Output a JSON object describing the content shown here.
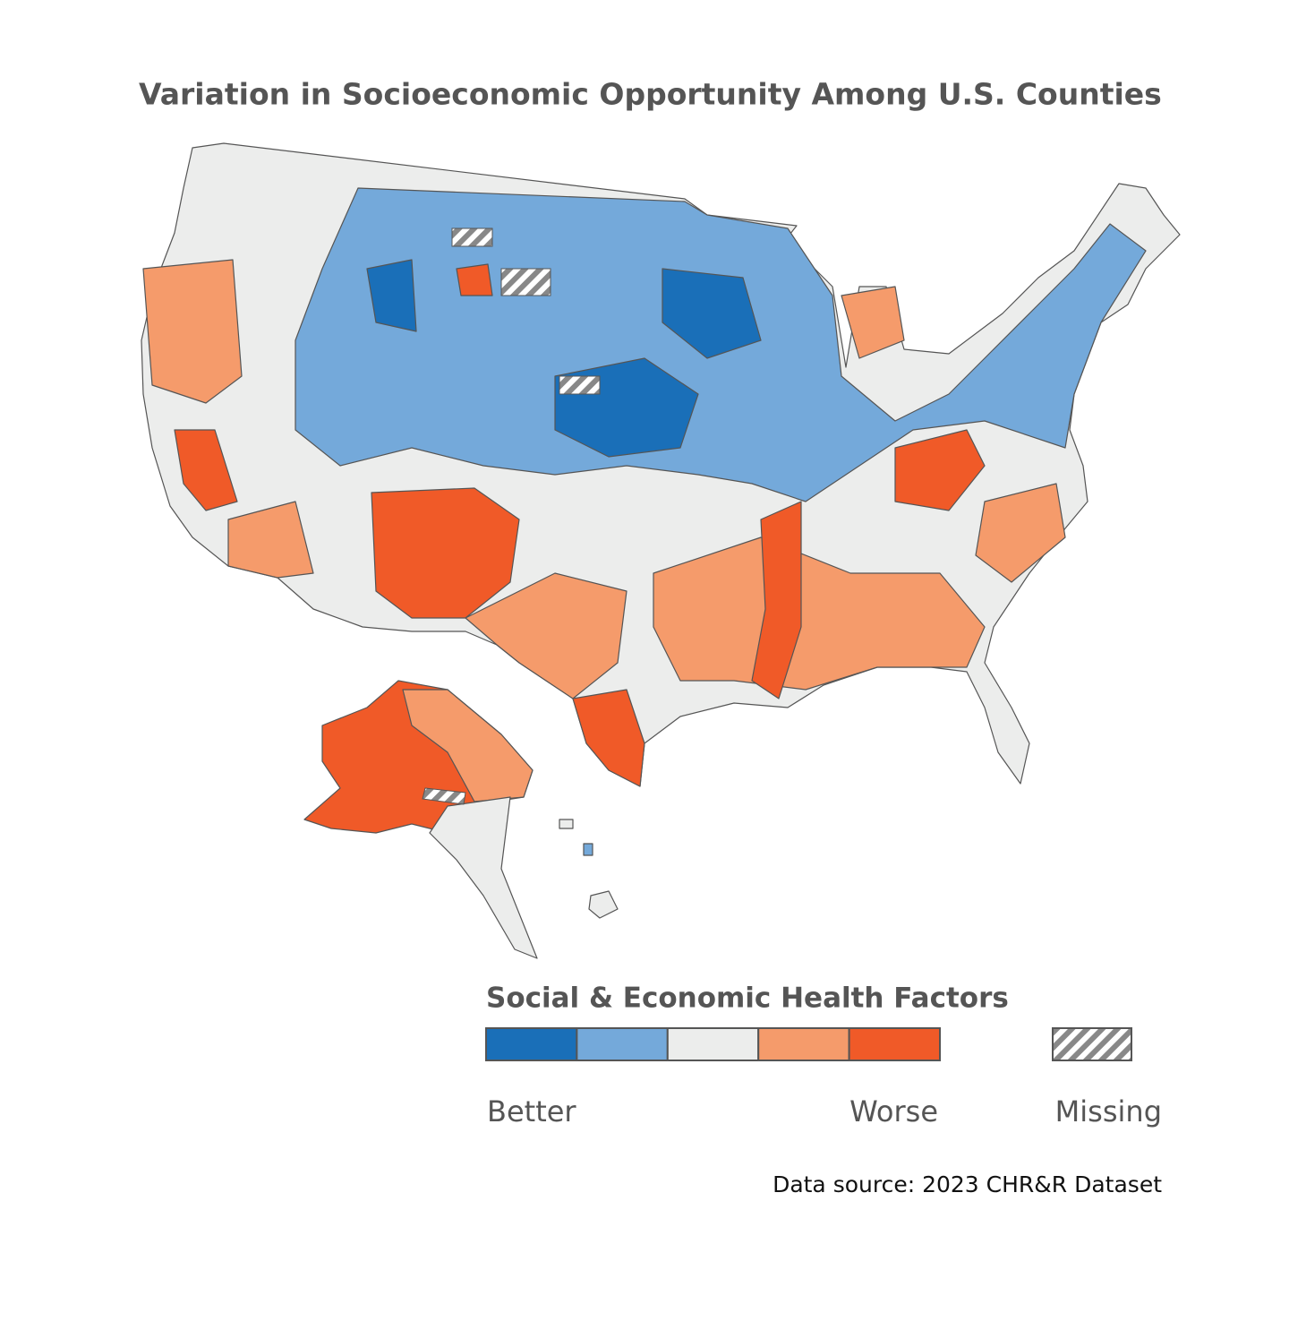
{
  "title": "Variation in Socioeconomic Opportunity Among U.S. Counties",
  "legend": {
    "title": "Social & Economic Health Factors",
    "colors": [
      "#1a6fb8",
      "#74a9da",
      "#ecedec",
      "#f59b6b",
      "#f05a28"
    ],
    "low_label": "Better",
    "high_label": "Worse",
    "missing_label": "Missing"
  },
  "source": "Data source: 2023 CHR&R Dataset"
}
